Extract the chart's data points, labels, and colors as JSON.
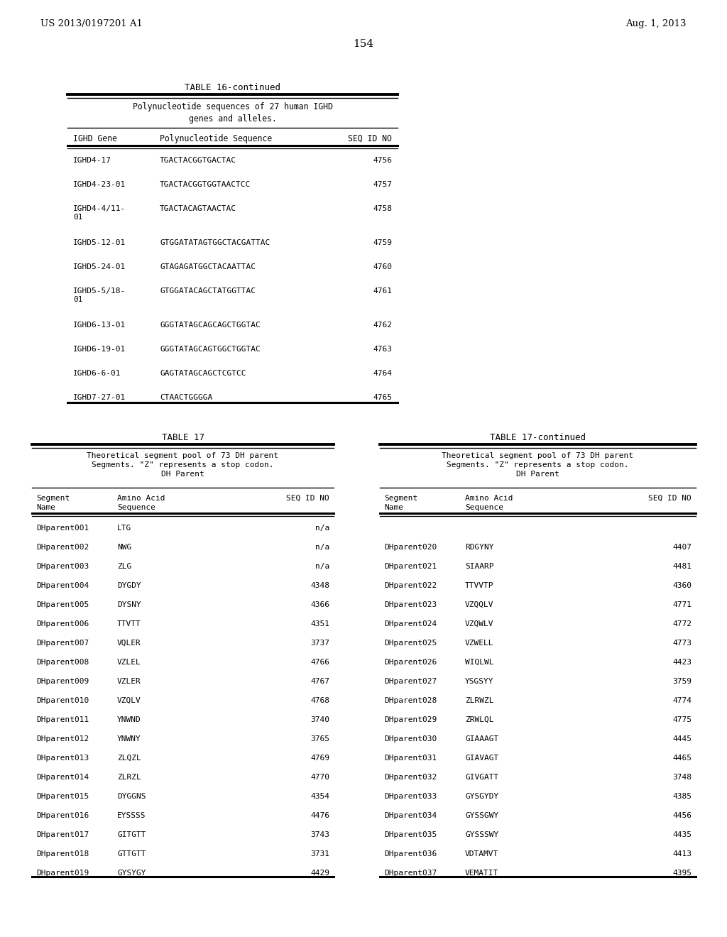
{
  "page_number": "154",
  "patent_left": "US 2013/0197201 A1",
  "patent_right": "Aug. 1, 2013",
  "background_color": "#ffffff",
  "table16_title": "TABLE 16-continued",
  "table16_subtitle": "Polynucleotide sequences of 27 human IGHD\ngenes and alleles.",
  "table16_headers": [
    "IGHD Gene",
    "Polynucleotide Sequence",
    "SEQ ID NO"
  ],
  "table16_rows": [
    [
      "IGHD4-17",
      "TGACTACGGTGACTAC",
      "4756",
      false
    ],
    [
      "IGHD4-23-01",
      "TGACTACGGTGGTAACTCC",
      "4757",
      false
    ],
    [
      "IGHD4-4/11-\n01",
      "TGACTACAGTAACTAC",
      "4758",
      true
    ],
    [
      "IGHD5-12-01",
      "GTGGATATAGTGGCTACGATTAC",
      "4759",
      false
    ],
    [
      "IGHD5-24-01",
      "GTAGAGATGGCTACAATTAC",
      "4760",
      false
    ],
    [
      "IGHD5-5/18-\n01",
      "GTGGATACAGCTATGGTTAC",
      "4761",
      true
    ],
    [
      "IGHD6-13-01",
      "GGGTATAGCAGCAGCTGGTAC",
      "4762",
      false
    ],
    [
      "IGHD6-19-01",
      "GGGTATAGCAGTGGCTGGTAC",
      "4763",
      false
    ],
    [
      "IGHD6-6-01",
      "GAGTATAGCAGCTCGTCC",
      "4764",
      false
    ],
    [
      "IGHD7-27-01",
      "CTAACTGGGGA",
      "4765",
      false
    ]
  ],
  "table17_title": "TABLE 17",
  "table17_subtitle": "Theoretical segment pool of 73 DH parent\nSegments. \"Z\" represents a stop codon.\nDH Parent",
  "table17_headers_line1": [
    "Segment",
    "Amino Acid",
    "SEQ ID NO"
  ],
  "table17_headers_line2": [
    "Name",
    "Sequence",
    ""
  ],
  "table17_rows": [
    [
      "DHparent001",
      "LTG",
      "n/a"
    ],
    [
      "DHparent002",
      "NWG",
      "n/a"
    ],
    [
      "DHparent003",
      "ZLG",
      "n/a"
    ],
    [
      "DHparent004",
      "DYGDY",
      "4348"
    ],
    [
      "DHparent005",
      "DYSNY",
      "4366"
    ],
    [
      "DHparent006",
      "TTVTT",
      "4351"
    ],
    [
      "DHparent007",
      "VQLER",
      "3737"
    ],
    [
      "DHparent008",
      "VZLEL",
      "4766"
    ],
    [
      "DHparent009",
      "VZLER",
      "4767"
    ],
    [
      "DHparent010",
      "VZQLV",
      "4768"
    ],
    [
      "DHparent011",
      "YNWND",
      "3740"
    ],
    [
      "DHparent012",
      "YNWNY",
      "3765"
    ],
    [
      "DHparent013",
      "ZLQZL",
      "4769"
    ],
    [
      "DHparent014",
      "ZLRZL",
      "4770"
    ],
    [
      "DHparent015",
      "DYGGNS",
      "4354"
    ],
    [
      "DHparent016",
      "EYSSSS",
      "4476"
    ],
    [
      "DHparent017",
      "GITGTT",
      "3743"
    ],
    [
      "DHparent018",
      "GTTGTT",
      "3731"
    ],
    [
      "DHparent019",
      "GYSYGY",
      "4429"
    ]
  ],
  "table17cont_title": "TABLE 17-continued",
  "table17cont_subtitle": "Theoretical segment pool of 73 DH parent\nSegments. \"Z\" represents a stop codon.\nDH Parent",
  "table17cont_rows": [
    [
      "DHparent020",
      "RDGYNY",
      "4407"
    ],
    [
      "DHparent021",
      "SIAARP",
      "4481"
    ],
    [
      "DHparent022",
      "TTVVTP",
      "4360"
    ],
    [
      "DHparent023",
      "VZQQLV",
      "4771"
    ],
    [
      "DHparent024",
      "VZQWLV",
      "4772"
    ],
    [
      "DHparent025",
      "VZWELL",
      "4773"
    ],
    [
      "DHparent026",
      "WIQLWL",
      "4423"
    ],
    [
      "DHparent027",
      "YSGSYY",
      "3759"
    ],
    [
      "DHparent028",
      "ZLRWZL",
      "4774"
    ],
    [
      "DHparent029",
      "ZRWLQL",
      "4775"
    ],
    [
      "DHparent030",
      "GIAAAGT",
      "4445"
    ],
    [
      "DHparent031",
      "GIAVAGT",
      "4465"
    ],
    [
      "DHparent032",
      "GIVGATT",
      "3748"
    ],
    [
      "DHparent033",
      "GYSGYDY",
      "4385"
    ],
    [
      "DHparent034",
      "GYSSGWY",
      "4456"
    ],
    [
      "DHparent035",
      "GYSSSWY",
      "4435"
    ],
    [
      "DHparent036",
      "VDTAMVT",
      "4413"
    ],
    [
      "DHparent037",
      "VEMATIT",
      "4395"
    ]
  ]
}
